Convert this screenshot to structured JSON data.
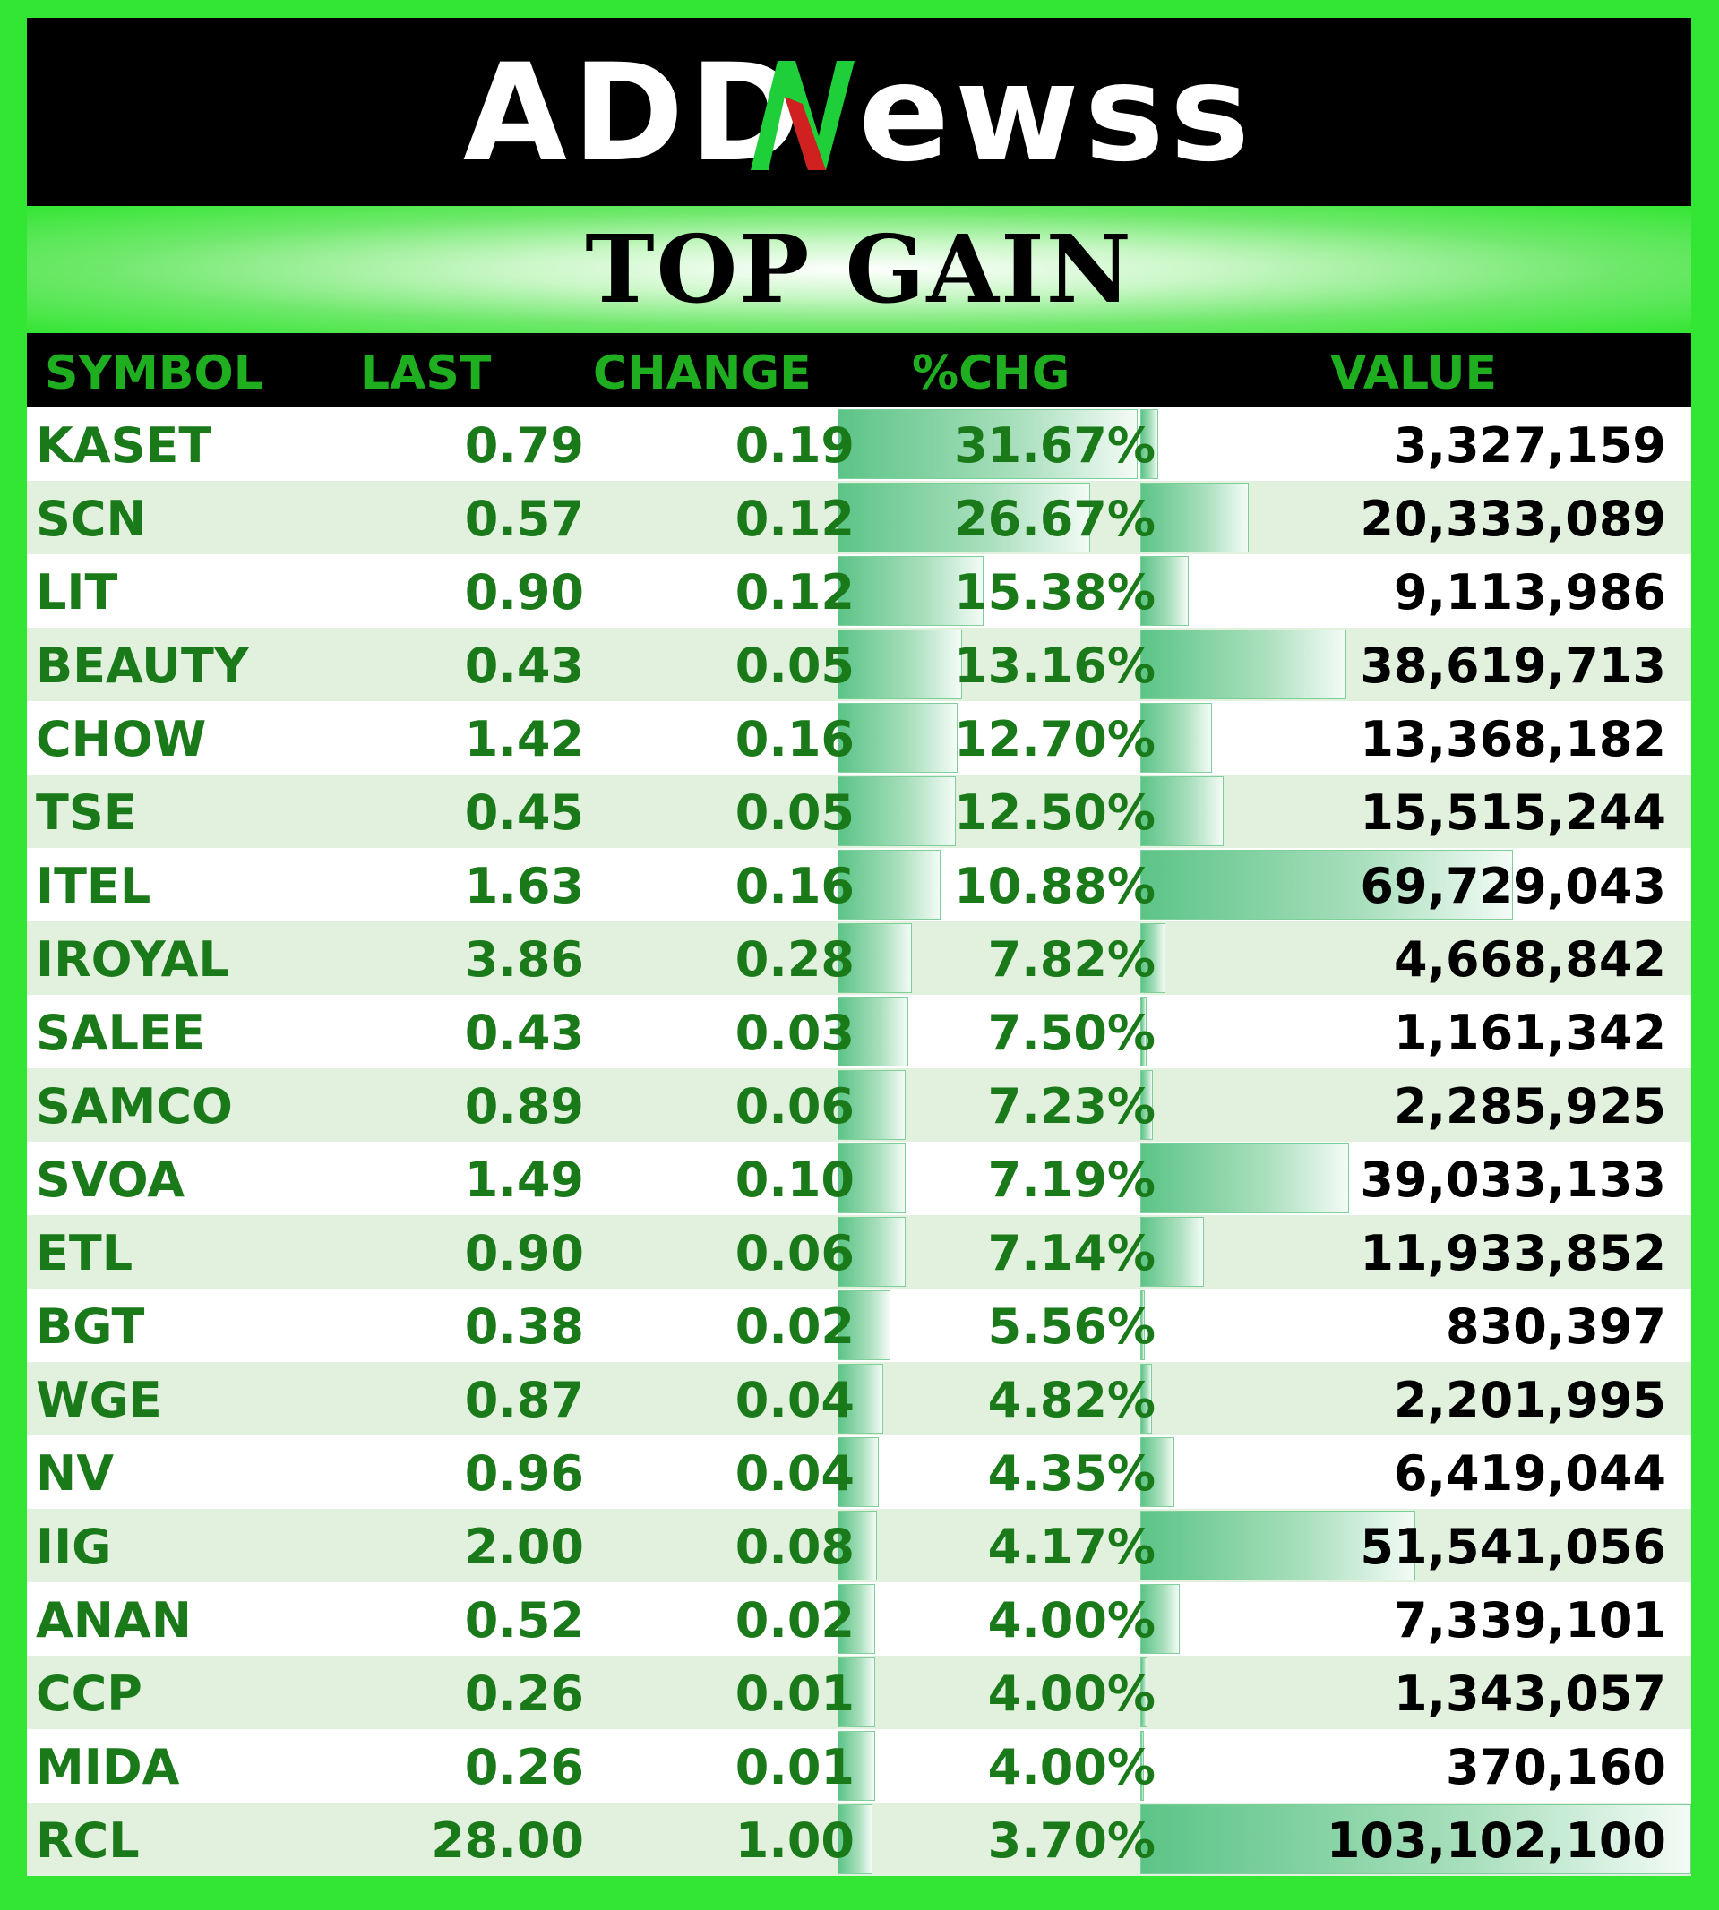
{
  "brand": {
    "logo_text": "ADDNewss"
  },
  "title": "TOP GAIN",
  "chart_data": {
    "type": "table",
    "columns": [
      "SYMBOL",
      "LAST",
      "CHANGE",
      "%CHG",
      "VALUE"
    ],
    "rows": [
      {
        "symbol": "KASET",
        "last": "0.79",
        "change": "0.19",
        "pchg": "31.67%",
        "value": "3,327,159",
        "pchg_num": 31.67,
        "value_num": 3327159
      },
      {
        "symbol": "SCN",
        "last": "0.57",
        "change": "0.12",
        "pchg": "26.67%",
        "value": "20,333,089",
        "pchg_num": 26.67,
        "value_num": 20333089
      },
      {
        "symbol": "LIT",
        "last": "0.90",
        "change": "0.12",
        "pchg": "15.38%",
        "value": "9,113,986",
        "pchg_num": 15.38,
        "value_num": 9113986
      },
      {
        "symbol": "BEAUTY",
        "last": "0.43",
        "change": "0.05",
        "pchg": "13.16%",
        "value": "38,619,713",
        "pchg_num": 13.16,
        "value_num": 38619713
      },
      {
        "symbol": "CHOW",
        "last": "1.42",
        "change": "0.16",
        "pchg": "12.70%",
        "value": "13,368,182",
        "pchg_num": 12.7,
        "value_num": 13368182
      },
      {
        "symbol": "TSE",
        "last": "0.45",
        "change": "0.05",
        "pchg": "12.50%",
        "value": "15,515,244",
        "pchg_num": 12.5,
        "value_num": 15515244
      },
      {
        "symbol": "ITEL",
        "last": "1.63",
        "change": "0.16",
        "pchg": "10.88%",
        "value": "69,729,043",
        "pchg_num": 10.88,
        "value_num": 69729043
      },
      {
        "symbol": "IROYAL",
        "last": "3.86",
        "change": "0.28",
        "pchg": "7.82%",
        "value": "4,668,842",
        "pchg_num": 7.82,
        "value_num": 4668842
      },
      {
        "symbol": "SALEE",
        "last": "0.43",
        "change": "0.03",
        "pchg": "7.50%",
        "value": "1,161,342",
        "pchg_num": 7.5,
        "value_num": 1161342
      },
      {
        "symbol": "SAMCO",
        "last": "0.89",
        "change": "0.06",
        "pchg": "7.23%",
        "value": "2,285,925",
        "pchg_num": 7.23,
        "value_num": 2285925
      },
      {
        "symbol": "SVOA",
        "last": "1.49",
        "change": "0.10",
        "pchg": "7.19%",
        "value": "39,033,133",
        "pchg_num": 7.19,
        "value_num": 39033133
      },
      {
        "symbol": "ETL",
        "last": "0.90",
        "change": "0.06",
        "pchg": "7.14%",
        "value": "11,933,852",
        "pchg_num": 7.14,
        "value_num": 11933852
      },
      {
        "symbol": "BGT",
        "last": "0.38",
        "change": "0.02",
        "pchg": "5.56%",
        "value": "830,397",
        "pchg_num": 5.56,
        "value_num": 830397
      },
      {
        "symbol": "WGE",
        "last": "0.87",
        "change": "0.04",
        "pchg": "4.82%",
        "value": "2,201,995",
        "pchg_num": 4.82,
        "value_num": 2201995
      },
      {
        "symbol": "NV",
        "last": "0.96",
        "change": "0.04",
        "pchg": "4.35%",
        "value": "6,419,044",
        "pchg_num": 4.35,
        "value_num": 6419044
      },
      {
        "symbol": "IIG",
        "last": "2.00",
        "change": "0.08",
        "pchg": "4.17%",
        "value": "51,541,056",
        "pchg_num": 4.17,
        "value_num": 51541056
      },
      {
        "symbol": "ANAN",
        "last": "0.52",
        "change": "0.02",
        "pchg": "4.00%",
        "value": "7,339,101",
        "pchg_num": 4.0,
        "value_num": 7339101
      },
      {
        "symbol": "CCP",
        "last": "0.26",
        "change": "0.01",
        "pchg": "4.00%",
        "value": "1,343,057",
        "pchg_num": 4.0,
        "value_num": 1343057
      },
      {
        "symbol": "MIDA",
        "last": "0.26",
        "change": "0.01",
        "pchg": "4.00%",
        "value": "370,160",
        "pchg_num": 4.0,
        "value_num": 370160
      },
      {
        "symbol": "RCL",
        "last": "28.00",
        "change": "1.00",
        "pchg": "3.70%",
        "value": "103,102,100",
        "pchg_num": 3.7,
        "value_num": 103102100
      }
    ]
  },
  "colors": {
    "frame": "#33e633",
    "header_bg": "#000000",
    "text_green": "#1a7a1a",
    "header_text": "#1fae1f",
    "bar": "#5cc487",
    "alt_row": "#e2f0de"
  }
}
